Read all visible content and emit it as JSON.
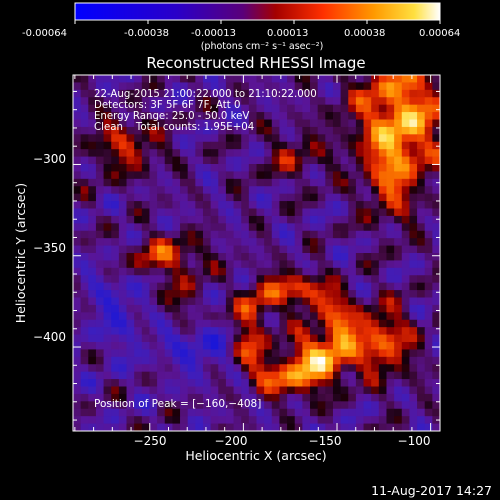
{
  "window": {
    "timestamp": "11-Aug-2017 14:27"
  },
  "colorbar": {
    "ticks": [
      "-0.00064",
      "-0.00038",
      "-0.00013",
      "0.00013",
      "0.00038",
      "0.00064"
    ],
    "min": -0.00064,
    "max": 0.00064,
    "unit_label": "(photons cm⁻² s⁻¹ asec⁻²)"
  },
  "chart_data": {
    "type": "heatmap",
    "title": "Reconstructed RHESSI Image",
    "xlabel": "Heliocentric X (arcsec)",
    "ylabel": "Heliocentric Y (arcsec)",
    "xlim": [
      -291,
      -95
    ],
    "ylim": [
      -446,
      -251
    ],
    "xticks": [
      -250,
      -200,
      -150,
      -100
    ],
    "yticks": [
      -300,
      -350,
      -400
    ],
    "xtick_labels": [
      "−250",
      "−200",
      "−150",
      "−100"
    ],
    "ytick_labels": [
      "−300",
      "−350",
      "−400"
    ],
    "colormap": "rainbow-hot (blue → purple → red → orange → yellow → white)",
    "grid": false,
    "annotations": [
      "22-Aug-2015 21:00:22.000 to 21:10:22.000",
      "Detectors: 3F 5F 6F 7F, Att 0",
      "Energy Range: 25.0 - 50.0 keV",
      "Clean    Total counts: 1.95E+04"
    ],
    "peak_label": "Position of Peak = [−160,−408]",
    "peak": [
      -160,
      -408
    ]
  }
}
